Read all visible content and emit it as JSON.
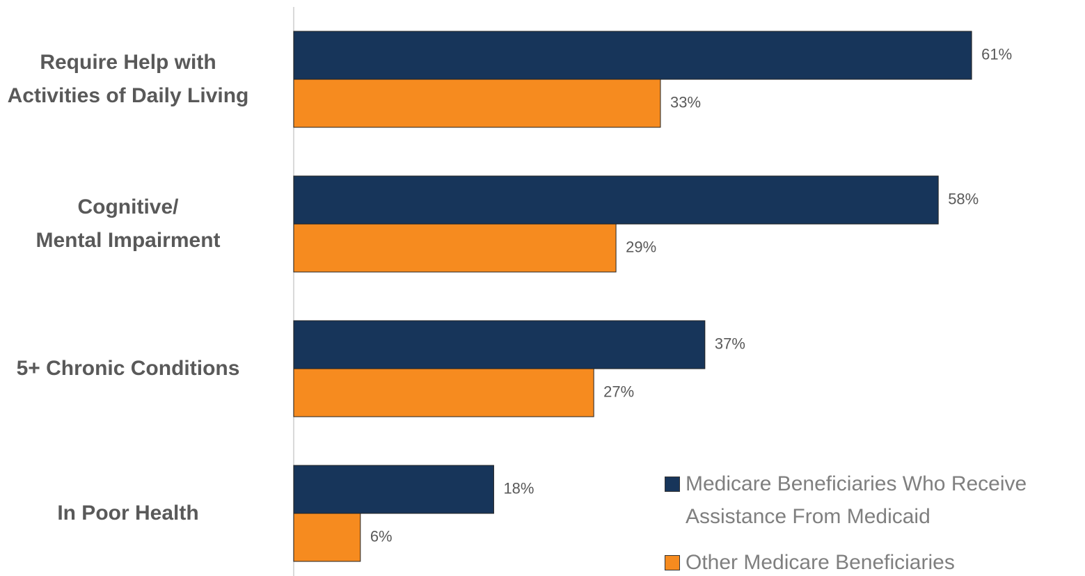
{
  "chart_data": {
    "type": "hbar",
    "categories": [
      "Require Help with\nActivities of Daily Living",
      "Cognitive/\nMental Impairment",
      "5+ Chronic Conditions",
      "In Poor Health"
    ],
    "series": [
      {
        "name": "Medicare Beneficiaries Who Receive Assistance From Medicaid",
        "color": "#17355a",
        "values": [
          61,
          58,
          37,
          18
        ],
        "value_labels": [
          "61%",
          "58%",
          "37%",
          "18%"
        ]
      },
      {
        "name": "Other Medicare Beneficiaries",
        "color": "#f68b1f",
        "values": [
          33,
          29,
          27,
          6
        ],
        "value_labels": [
          "33%",
          "29%",
          "27%",
          "6%"
        ]
      }
    ],
    "xlim": [
      0,
      64
    ],
    "legend": "lower right"
  }
}
